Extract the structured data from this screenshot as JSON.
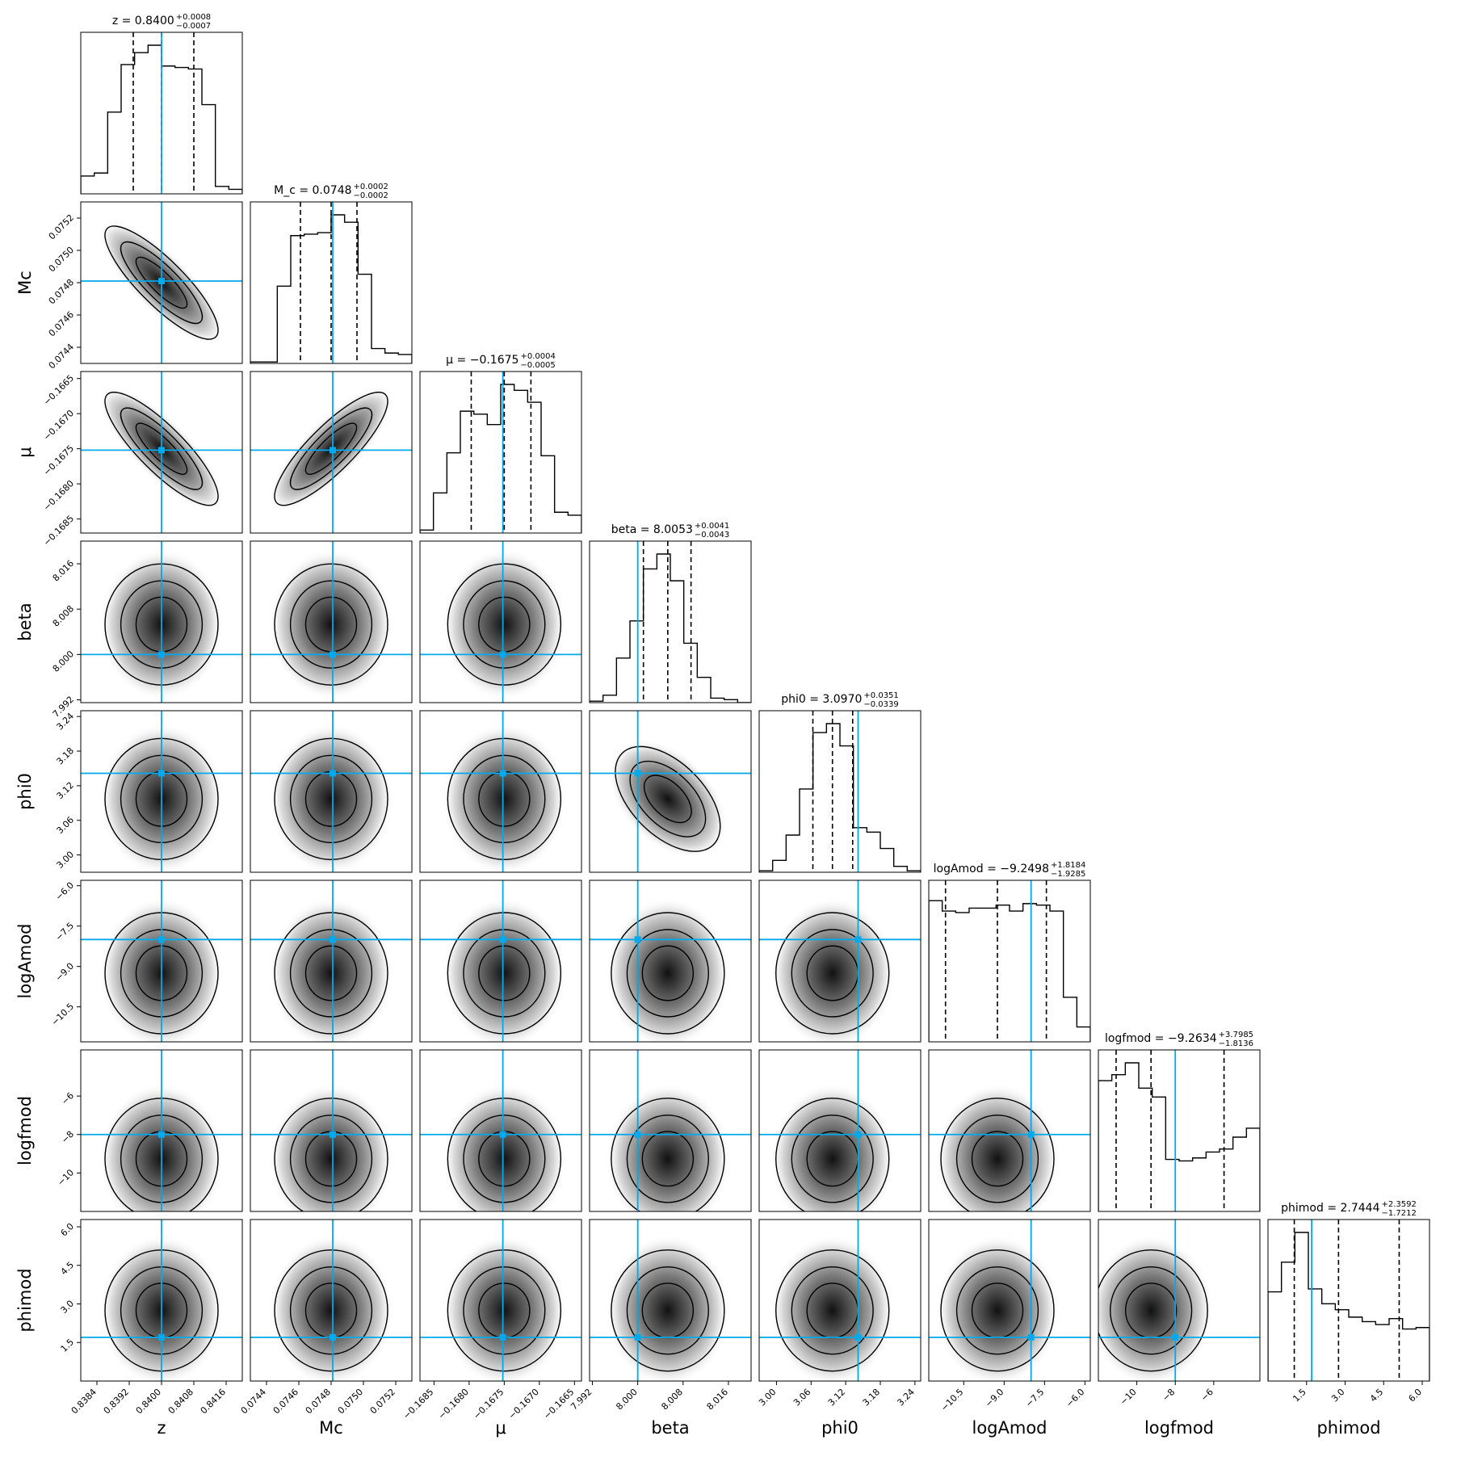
{
  "chart_data": {
    "type": "corner",
    "params": [
      {
        "key": "z",
        "axis_label": "z",
        "title": "z = 0.8400",
        "title_plus": "+0.0008",
        "title_minus": "−0.0007",
        "range": [
          0.838,
          0.842
        ],
        "median": 0.84,
        "q16": 0.8393,
        "q84": 0.8408,
        "truth": 0.84,
        "ticks": [
          "0.8384",
          "0.8392",
          "0.8400",
          "0.8408",
          "0.8416"
        ],
        "tick_values": [
          0.8384,
          0.8392,
          0.84,
          0.8408,
          0.8416
        ],
        "hist": [
          0.12,
          0.14,
          0.55,
          0.87,
          0.95,
          1.0,
          0.86,
          0.85,
          0.84,
          0.6,
          0.05,
          0.03
        ]
      },
      {
        "key": "Mc",
        "axis_label": "M_c",
        "title": "M_c = 0.0748",
        "title_plus": "+0.0002",
        "title_minus": "−0.0002",
        "range": [
          0.0743,
          0.0753
        ],
        "median": 0.0748,
        "q16": 0.07461,
        "q84": 0.07496,
        "truth": 0.07481,
        "ticks": [
          "0.0744",
          "0.0746",
          "0.0748",
          "0.0750",
          "0.0752"
        ],
        "tick_values": [
          0.0744,
          0.0746,
          0.0748,
          0.075,
          0.0752
        ],
        "hist": [
          0.01,
          0.01,
          0.52,
          0.86,
          0.87,
          0.88,
          1.0,
          0.95,
          0.6,
          0.1,
          0.07,
          0.06
        ]
      },
      {
        "key": "mu",
        "axis_label": "μ",
        "title": "μ = −0.1675",
        "title_plus": "+0.0004",
        "title_minus": "−0.0005",
        "range": [
          -0.1687,
          -0.1664
        ],
        "median": -0.1675,
        "q16": -0.16797,
        "q84": -0.16712,
        "truth": -0.16752,
        "ticks": [
          "−0.1685",
          "−0.1680",
          "−0.1675",
          "−0.1670",
          "−0.1665"
        ],
        "tick_values": [
          -0.1685,
          -0.168,
          -0.1675,
          -0.167,
          -0.1665
        ],
        "hist": [
          0.02,
          0.27,
          0.54,
          0.82,
          0.8,
          0.73,
          1.0,
          0.96,
          0.88,
          0.52,
          0.14,
          0.12
        ]
      },
      {
        "key": "beta",
        "axis_label": "beta",
        "title": "beta = 8.0053",
        "title_plus": "+0.0041",
        "title_minus": "−0.0043",
        "range": [
          7.9915,
          8.02
        ],
        "median": 8.0053,
        "q16": 8.001,
        "q84": 8.0094,
        "truth": 8.0,
        "ticks": [
          "7.992",
          "8.000",
          "8.008",
          "8.016"
        ],
        "tick_values": [
          7.992,
          8.0,
          8.008,
          8.016
        ],
        "hist": [
          0.01,
          0.05,
          0.3,
          0.55,
          0.9,
          1.0,
          0.82,
          0.4,
          0.17,
          0.03,
          0.02,
          0.0
        ]
      },
      {
        "key": "phi0",
        "axis_label": "phi0",
        "title": "phi0 = 3.0970",
        "title_plus": "+0.0351",
        "title_minus": "−0.0339",
        "range": [
          2.97,
          3.25
        ],
        "median": 3.097,
        "q16": 3.0631,
        "q84": 3.1321,
        "truth": 3.1415,
        "ticks": [
          "3.00",
          "3.06",
          "3.12",
          "3.18",
          "3.24"
        ],
        "tick_values": [
          3.0,
          3.06,
          3.12,
          3.18,
          3.24
        ],
        "hist": [
          0.01,
          0.08,
          0.25,
          0.56,
          0.94,
          1.0,
          0.85,
          0.3,
          0.27,
          0.16,
          0.04,
          0.01
        ]
      },
      {
        "key": "logAmod",
        "axis_label": "logAmod",
        "title": "logAmod = −9.2498",
        "title_plus": "+1.8184",
        "title_minus": "−1.9285",
        "range": [
          -11.8,
          -5.8
        ],
        "median": -9.2498,
        "q16": -11.1783,
        "q84": -7.4314,
        "truth": -8.0,
        "ticks": [
          "−10.5",
          "−9.0",
          "−7.5",
          "−6.0"
        ],
        "tick_values": [
          -10.5,
          -9.0,
          -7.5,
          -6.0
        ],
        "hist": [
          0.95,
          0.88,
          0.87,
          0.9,
          0.9,
          0.92,
          0.88,
          0.93,
          0.92,
          0.88,
          0.3,
          0.1
        ]
      },
      {
        "key": "logfmod",
        "axis_label": "logfmod",
        "title": "logfmod = −9.2634",
        "title_plus": "+3.7985",
        "title_minus": "−1.8136",
        "range": [
          -12.0,
          -3.6
        ],
        "median": -9.2634,
        "q16": -11.077,
        "q84": -5.4649,
        "truth": -8.0,
        "ticks": [
          "−10",
          "−8",
          "−6"
        ],
        "tick_values": [
          -10,
          -8,
          -6
        ],
        "hist": [
          0.88,
          0.92,
          1.0,
          0.83,
          0.77,
          0.35,
          0.34,
          0.36,
          0.4,
          0.42,
          0.5,
          0.56
        ]
      },
      {
        "key": "phimod",
        "axis_label": "phimod",
        "title": "phimod = 2.7444",
        "title_plus": "+2.3592",
        "title_minus": "−1.7212",
        "range": [
          0.0,
          6.283
        ],
        "median": 2.7444,
        "q16": 1.0232,
        "q84": 5.1036,
        "truth": 1.7,
        "ticks": [
          "1.5",
          "3.0",
          "4.5",
          "6.0"
        ],
        "tick_values": [
          1.5,
          3.0,
          4.5,
          6.0
        ],
        "hist": [
          0.6,
          0.8,
          1.0,
          0.62,
          0.52,
          0.48,
          0.43,
          0.4,
          0.38,
          0.42,
          0.35,
          0.36
        ]
      }
    ],
    "xlabels": [
      "z",
      "Mc",
      "μ",
      "beta",
      "phi0",
      "logAmod",
      "logfmod",
      "phimod"
    ],
    "ylabels": [
      "Mc",
      "μ",
      "beta",
      "phi0",
      "logAmod",
      "logfmod",
      "phimod"
    ],
    "truth_color": "#00a9ec",
    "contour_color": "#000000",
    "grid": false
  }
}
